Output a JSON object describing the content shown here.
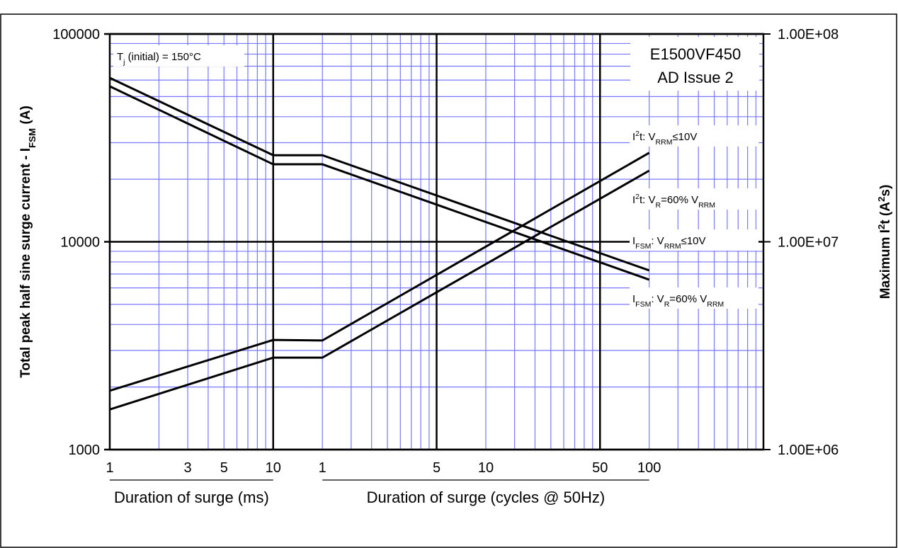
{
  "chart_data": {
    "type": "line",
    "xlabel": [
      "Duration of surge (ms)",
      "Duration of surge (cycles @ 50Hz)"
    ],
    "ylabel": [
      "Total peak half sine surge current - I",
      {
        "sub": "FSM"
      },
      " (A)"
    ],
    "y2label": [
      "Maximum I",
      {
        "sup": "2"
      },
      "t (A",
      {
        "sup": "2"
      },
      "s)"
    ],
    "annotations": [
      [
        "T",
        {
          "sub": "j"
        },
        " (initial) = 150°C"
      ]
    ],
    "note": [
      "E1500VF450",
      "AD Issue 2"
    ],
    "xlog": true,
    "ylog": true,
    "grid": true,
    "grid_color": "#7878ff",
    "xlim": [
      1,
      10000
    ],
    "xticks": [
      1,
      3,
      5,
      10,
      {
        "value": 20,
        "label": "1"
      },
      {
        "value": 100,
        "label": "5"
      },
      {
        "value": 200,
        "label": "10"
      },
      {
        "value": 1000,
        "label": "50"
      },
      {
        "value": 2000,
        "label": "100"
      }
    ],
    "xminor": [
      2,
      3,
      4,
      5,
      6,
      7,
      8,
      9,
      20,
      30,
      40,
      50,
      60,
      70,
      80,
      90,
      200,
      300,
      400,
      500,
      600,
      700,
      800,
      900,
      2000,
      3000,
      4000,
      5000,
      6000,
      7000,
      8000,
      9000
    ],
    "xmajorgrid": [
      10,
      100,
      1000
    ],
    "ylim": [
      1000,
      100000
    ],
    "yticks": [
      1000,
      10000,
      100000
    ],
    "yminor": [
      2000,
      3000,
      4000,
      5000,
      6000,
      7000,
      8000,
      9000,
      20000,
      30000,
      40000,
      50000,
      60000,
      70000,
      80000,
      90000
    ],
    "y2lim": [
      1000000,
      100000000
    ],
    "y2ticks": [
      {
        "value": 1000000,
        "label": "1.00E+06"
      },
      {
        "value": 10000000,
        "label": "1.00E+07"
      },
      {
        "value": 100000000,
        "label": "1.00E+08"
      }
    ],
    "x": [
      1,
      10,
      20,
      2000
    ],
    "series": [
      {
        "name": [
          "I",
          {
            "sup": "2"
          },
          "t: V",
          {
            "sub": "RRM"
          },
          "≤10V"
        ],
        "axis": "y2",
        "color": "#000000",
        "values": [
          1920000,
          3370000,
          3350000,
          26800000
        ]
      },
      {
        "name": [
          "I",
          {
            "sup": "2"
          },
          "t: V",
          {
            "sub": "R"
          },
          "=60% V",
          {
            "sub": "RRM"
          }
        ],
        "axis": "y2",
        "color": "#000000",
        "values": [
          1560000,
          2770000,
          2770000,
          22000000
        ]
      },
      {
        "name": [
          "I",
          {
            "sub": "FSM"
          },
          ": V",
          {
            "sub": "RRM"
          },
          "≤10V"
        ],
        "color": "#000000",
        "values": [
          61500,
          26100,
          26100,
          7280
        ]
      },
      {
        "name": [
          "I",
          {
            "sub": "FSM"
          },
          ": V",
          {
            "sub": "R"
          },
          "=60% V",
          {
            "sub": "RRM"
          }
        ],
        "color": "#000000",
        "values": [
          56000,
          23600,
          23600,
          6570
        ]
      }
    ]
  }
}
